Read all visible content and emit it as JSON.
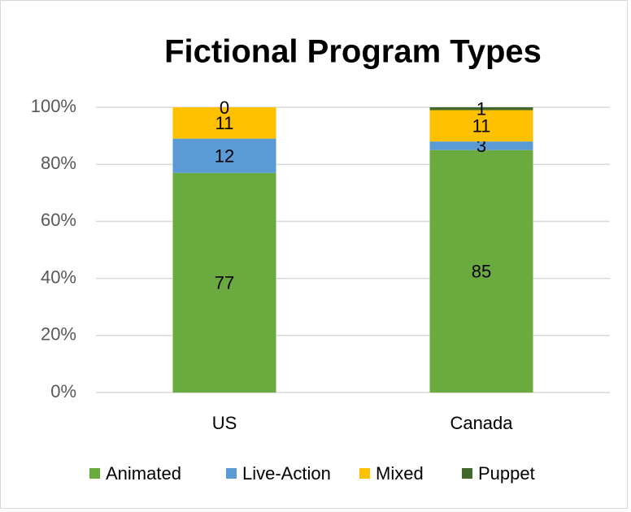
{
  "chart_data": {
    "type": "bar",
    "stacked": true,
    "title": "Fictional Program Types",
    "categories": [
      "US",
      "Canada"
    ],
    "series": [
      {
        "name": "Animated",
        "color": "#6aaa3f",
        "values": [
          77,
          85
        ]
      },
      {
        "name": "Live-Action",
        "color": "#5b9bd5",
        "values": [
          12,
          3
        ]
      },
      {
        "name": "Mixed",
        "color": "#ffc000",
        "values": [
          11,
          11
        ]
      },
      {
        "name": "Puppet",
        "color": "#43682b",
        "values": [
          0,
          1
        ]
      }
    ],
    "ylim": [
      0,
      100
    ],
    "yticks": [
      {
        "value": 0,
        "label": "0%"
      },
      {
        "value": 20,
        "label": "20%"
      },
      {
        "value": 40,
        "label": "40%"
      },
      {
        "value": 60,
        "label": "60%"
      },
      {
        "value": 80,
        "label": "80%"
      },
      {
        "value": 100,
        "label": "100%"
      }
    ],
    "grid": true,
    "legend": "bottom"
  }
}
